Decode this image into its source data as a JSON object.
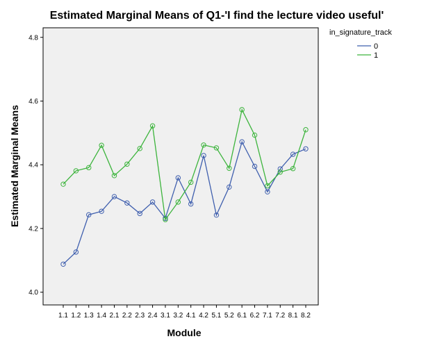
{
  "chart_data": {
    "type": "line",
    "title": "Estimated Marginal Means of Q1-'I find the lecture video useful'",
    "xlabel": "Module",
    "ylabel": "Estimated Marginal Means",
    "categories": [
      "1.1",
      "1.2",
      "1.3",
      "1.4",
      "2.1",
      "2.2",
      "2.3",
      "2.4",
      "3.1",
      "3.2",
      "4.1",
      "4.2",
      "5.1",
      "5.2",
      "6.1",
      "6.2",
      "7.1",
      "7.2",
      "8.1",
      "8.2"
    ],
    "ylim": [
      3.96,
      4.83
    ],
    "yticks": [
      "4.0",
      "4.2",
      "4.4",
      "4.6",
      "4.8"
    ],
    "legend_title": "in_signature_track",
    "legend_position": "top-right",
    "series": [
      {
        "name": "0",
        "color": "#3f5fae",
        "values": [
          4.088,
          4.126,
          4.243,
          4.254,
          4.3,
          4.28,
          4.247,
          4.283,
          4.232,
          4.359,
          4.277,
          4.429,
          4.242,
          4.33,
          4.472,
          4.395,
          4.315,
          4.387,
          4.433,
          4.45
        ]
      },
      {
        "name": "1",
        "color": "#3cb43c",
        "values": [
          4.339,
          4.381,
          4.391,
          4.461,
          4.366,
          4.402,
          4.451,
          4.522,
          4.228,
          4.283,
          4.345,
          4.462,
          4.453,
          4.389,
          4.573,
          4.493,
          4.334,
          4.377,
          4.388,
          4.51
        ]
      }
    ],
    "grid": false
  }
}
